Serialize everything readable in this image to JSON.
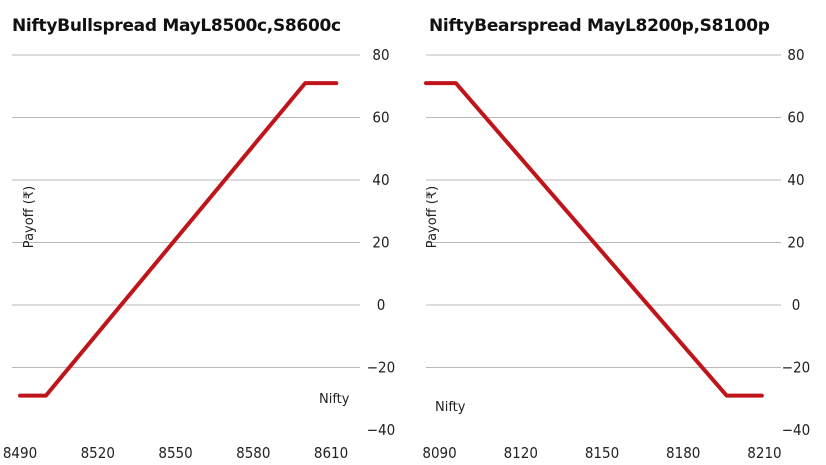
{
  "chart_data": [
    {
      "type": "line",
      "title": "NiftyBullspread MayL8500c,S8600c",
      "xlabel": "Nifty",
      "ylabel": "Payoff (₹)",
      "xticks": [
        8490,
        8520,
        8550,
        8580,
        8610
      ],
      "yticks": [
        80,
        60,
        40,
        20,
        0,
        -20,
        -40
      ],
      "xlim": [
        8490,
        8620
      ],
      "ylim": [
        -40,
        80
      ],
      "grid": true,
      "y_axis_side": "right",
      "series": [
        {
          "x": [
            8490,
            8500,
            8600,
            8612
          ],
          "y": [
            -29,
            -29,
            71,
            71
          ]
        }
      ],
      "line_color": "#c0141b"
    },
    {
      "type": "line",
      "title": "NiftyBearspread MayL8200p,S8100p",
      "xlabel": "Nifty",
      "ylabel": "Payoff (₹)",
      "xticks": [
        8090,
        8120,
        8150,
        8180,
        8210
      ],
      "yticks": [
        80,
        60,
        40,
        20,
        0,
        -20,
        -40
      ],
      "xlim": [
        8085,
        8215
      ],
      "ylim": [
        -40,
        80
      ],
      "grid": true,
      "y_axis_side": "right",
      "series": [
        {
          "x": [
            8085,
            8096,
            8196,
            8209
          ],
          "y": [
            71,
            71,
            -29,
            -29
          ]
        }
      ],
      "line_color": "#c0141b"
    }
  ]
}
